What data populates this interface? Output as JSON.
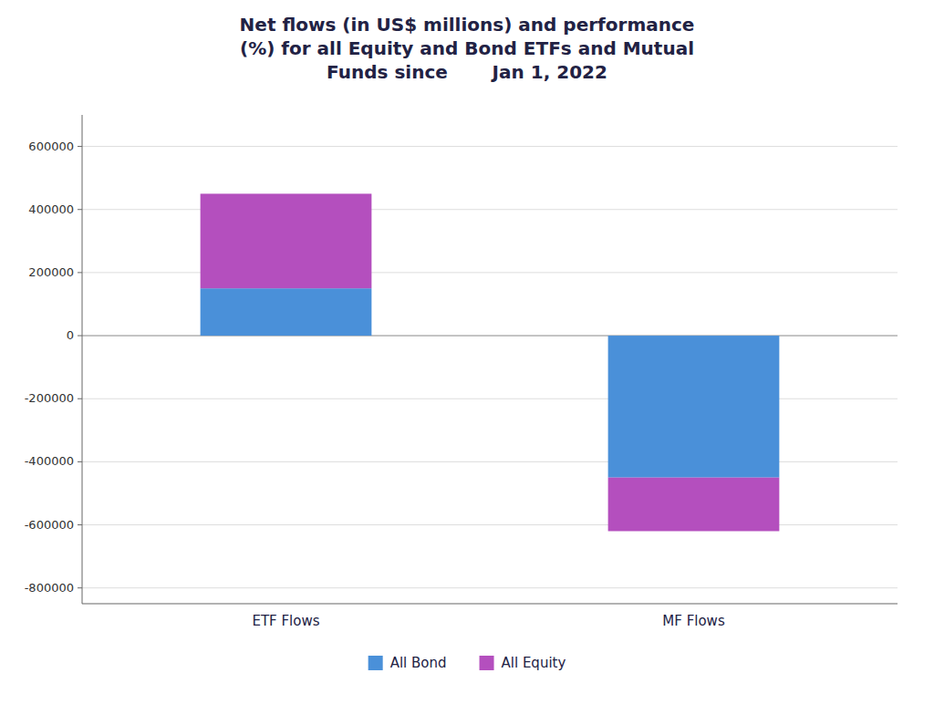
{
  "chart_data": {
    "type": "bar",
    "title": "Net flows (in US$ millions) and performance\n(%) for all Equity and Bond ETFs and Mutual\nFunds since       Jan 1, 2022",
    "categories": [
      "ETF Flows",
      "MF Flows"
    ],
    "series": [
      {
        "name": "All Bond",
        "color": "#4a90d9",
        "values": [
          150000,
          -450000
        ]
      },
      {
        "name": "All Equity",
        "color": "#b44fbe",
        "values": [
          300000,
          -170000
        ]
      }
    ],
    "stacked": true,
    "ylim": [
      -850000,
      700000
    ],
    "yticks": [
      -800000,
      -600000,
      -400000,
      -200000,
      0,
      200000,
      400000,
      600000
    ],
    "grid": true,
    "legend": "bottom"
  }
}
